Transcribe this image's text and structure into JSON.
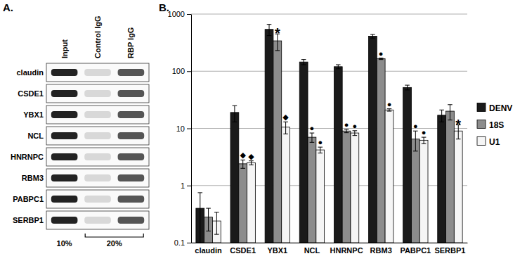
{
  "blot": {
    "label": "A.",
    "lanes": [
      "Input",
      "Control IgG",
      "RBP IgG"
    ],
    "rows": [
      "claudin",
      "CSDE1",
      "YBX1",
      "NCL",
      "HNRNPC",
      "RBM3",
      "PABPC1",
      "SERBP1"
    ],
    "loading_labels": [
      "10%",
      "20%"
    ]
  },
  "chart_data": {
    "type": "bar",
    "title": "B.",
    "categories": [
      "claudin",
      "CSDE1",
      "YBX1",
      "NCL",
      "HNRNPC",
      "RBM3",
      "PABPC1",
      "SERBP1"
    ],
    "series": [
      {
        "name": "DENV",
        "color": "#1a1a1a",
        "values": [
          0.4,
          19,
          540,
          145,
          120,
          410,
          52,
          17
        ],
        "errors": [
          0.35,
          6,
          120,
          15,
          10,
          30,
          5,
          4
        ]
      },
      {
        "name": "18S",
        "color": "#8c8c8c",
        "values": [
          0.28,
          2.4,
          340,
          7,
          9,
          165,
          6.5,
          20
        ],
        "errors": [
          0.12,
          0.4,
          110,
          1.3,
          0.6,
          5,
          2.5,
          6
        ]
      },
      {
        "name": "U1",
        "color": "#f5f5f5",
        "values": [
          0.24,
          2.5,
          10.5,
          4.2,
          8.3,
          21,
          6.2,
          9
        ],
        "errors": [
          0.1,
          0.2,
          2.5,
          0.5,
          0.8,
          1,
          0.8,
          2.5
        ]
      }
    ],
    "annotations": [
      {
        "category": "CSDE1",
        "series": "18S",
        "text": "◆"
      },
      {
        "category": "CSDE1",
        "series": "U1",
        "text": "◆"
      },
      {
        "category": "YBX1",
        "series": "18S",
        "text": "*"
      },
      {
        "category": "YBX1",
        "series": "U1",
        "text": "◆"
      },
      {
        "category": "NCL",
        "series": "18S",
        "text": "●"
      },
      {
        "category": "NCL",
        "series": "U1",
        "text": "●"
      },
      {
        "category": "HNRNPC",
        "series": "18S",
        "text": "●"
      },
      {
        "category": "HNRNPC",
        "series": "U1",
        "text": "●"
      },
      {
        "category": "RBM3",
        "series": "18S",
        "text": "●"
      },
      {
        "category": "RBM3",
        "series": "U1",
        "text": "●"
      },
      {
        "category": "PABPC1",
        "series": "18S",
        "text": "●"
      },
      {
        "category": "PABPC1",
        "series": "U1",
        "text": "●"
      },
      {
        "category": "SERBP1",
        "series": "U1",
        "text": "*"
      }
    ],
    "log": "y",
    "ylim": [
      0.1,
      1000
    ],
    "yticks": [
      0.1,
      1,
      10,
      100,
      1000
    ],
    "grid": true,
    "legend": "right"
  }
}
